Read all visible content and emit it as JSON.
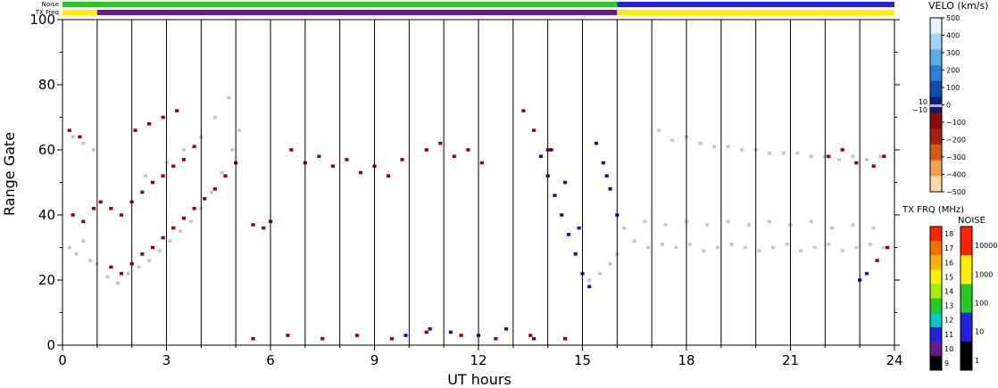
{
  "chart_data": {
    "type": "heatmap",
    "xlabel": "UT hours",
    "ylabel": "Range Gate",
    "xlim": [
      0,
      24
    ],
    "ylim": [
      0,
      100
    ],
    "x_ticks": [
      0,
      3,
      6,
      9,
      12,
      15,
      18,
      21,
      24
    ],
    "y_ticks": [
      0,
      20,
      40,
      60,
      80,
      100
    ],
    "hour_gridlines": [
      1,
      2,
      3,
      4,
      5,
      6,
      7,
      8,
      9,
      10,
      11,
      12,
      13,
      14,
      15,
      16,
      17,
      18,
      19,
      20,
      21,
      22,
      23
    ],
    "strip_labels": {
      "noise": "Noise",
      "txfreq": "TX Freq"
    },
    "noise_strip": [
      {
        "from": 0,
        "to": 16,
        "color": "#22cc22"
      },
      {
        "from": 16,
        "to": 24,
        "color": "#2222dd"
      }
    ],
    "txfreq_strip": [
      {
        "from": 0,
        "to": 1.0,
        "color": "#ffee00"
      },
      {
        "from": 1.0,
        "to": 16.0,
        "color": "#6a1a8a"
      },
      {
        "from": 16.0,
        "to": 24,
        "color": "#ffee00"
      }
    ],
    "velocity_scale": {
      "title": "VELO (km/s)",
      "ticks": [
        "500",
        "400",
        "300",
        "200",
        "100",
        "0",
        "−100",
        "−200",
        "−300",
        "−400",
        "−500"
      ],
      "ground_scatter_labels": [
        "10",
        "−10"
      ],
      "colors": [
        "#e6f4ff",
        "#9fd4f5",
        "#5aaee8",
        "#2a7fd8",
        "#0d4bb0",
        "#0a1f80",
        "#8b0a0a",
        "#a82010",
        "#d95a10",
        "#f0a050",
        "#ffd8a8"
      ]
    },
    "txfreq_scale": {
      "title": "TX FRQ (MHz)",
      "ticks": [
        "18",
        "17",
        "16",
        "15",
        "14",
        "13",
        "12",
        "11",
        "10",
        "9"
      ],
      "colors": [
        "#ff2000",
        "#ff7000",
        "#ffb000",
        "#ffee00",
        "#a0ee00",
        "#22cc22",
        "#00c8c8",
        "#2222dd",
        "#6a1a8a",
        "#000000"
      ]
    },
    "noise_scale": {
      "title": "NOISE",
      "ticks": [
        "10000",
        "1000",
        "100",
        "10",
        "1"
      ],
      "colors": [
        "#ff2000",
        "#ffee00",
        "#22cc22",
        "#2222dd",
        "#000000"
      ]
    },
    "series": [
      {
        "kind": "ground-scatter",
        "color": "#c8c8c8",
        "points": [
          [
            0.2,
            30
          ],
          [
            0.4,
            28
          ],
          [
            0.6,
            32
          ],
          [
            0.8,
            26
          ],
          [
            1.0,
            25
          ],
          [
            0.3,
            64
          ],
          [
            0.6,
            62
          ],
          [
            0.9,
            60
          ],
          [
            1.3,
            21
          ],
          [
            1.6,
            19
          ],
          [
            1.9,
            22
          ],
          [
            2.2,
            24
          ],
          [
            2.5,
            26
          ],
          [
            2.8,
            29
          ],
          [
            3.1,
            32
          ],
          [
            3.4,
            35
          ],
          [
            3.7,
            38
          ],
          [
            4.0,
            42
          ],
          [
            4.3,
            47
          ],
          [
            4.6,
            53
          ],
          [
            4.9,
            60
          ],
          [
            5.1,
            66
          ],
          [
            2.4,
            52
          ],
          [
            3.0,
            56
          ],
          [
            3.5,
            60
          ],
          [
            4.0,
            64
          ],
          [
            4.4,
            70
          ],
          [
            4.8,
            76
          ],
          [
            16.2,
            36
          ],
          [
            16.5,
            32
          ],
          [
            16.9,
            30
          ],
          [
            17.3,
            31
          ],
          [
            17.7,
            30
          ],
          [
            18.1,
            31
          ],
          [
            18.5,
            29
          ],
          [
            18.9,
            30
          ],
          [
            19.3,
            31
          ],
          [
            19.7,
            30
          ],
          [
            20.1,
            29
          ],
          [
            20.5,
            30
          ],
          [
            20.9,
            31
          ],
          [
            21.3,
            29
          ],
          [
            21.7,
            30
          ],
          [
            22.1,
            31
          ],
          [
            22.5,
            29
          ],
          [
            22.9,
            30
          ],
          [
            23.3,
            31
          ],
          [
            23.7,
            30
          ],
          [
            16.8,
            38
          ],
          [
            17.4,
            37
          ],
          [
            18.0,
            38
          ],
          [
            18.6,
            37
          ],
          [
            19.2,
            38
          ],
          [
            19.8,
            37
          ],
          [
            20.4,
            38
          ],
          [
            21.0,
            37
          ],
          [
            21.6,
            38
          ],
          [
            22.2,
            36
          ],
          [
            22.8,
            37
          ],
          [
            23.4,
            36
          ],
          [
            17.2,
            66
          ],
          [
            17.6,
            63
          ],
          [
            18.0,
            64
          ],
          [
            18.4,
            62
          ],
          [
            18.8,
            61
          ],
          [
            19.2,
            61
          ],
          [
            19.6,
            60
          ],
          [
            20.0,
            60
          ],
          [
            20.4,
            59
          ],
          [
            20.8,
            59
          ],
          [
            21.2,
            59
          ],
          [
            21.6,
            58
          ],
          [
            22.0,
            58
          ],
          [
            22.4,
            57
          ],
          [
            22.8,
            58
          ],
          [
            23.2,
            57
          ],
          [
            23.6,
            58
          ],
          [
            15.2,
            20
          ],
          [
            15.5,
            22
          ],
          [
            15.8,
            25
          ],
          [
            16.0,
            28
          ]
        ]
      },
      {
        "kind": "negative-velocity",
        "color": "#8b0a0a",
        "points": [
          [
            0.3,
            40
          ],
          [
            0.6,
            38
          ],
          [
            0.9,
            42
          ],
          [
            0.2,
            66
          ],
          [
            0.5,
            64
          ],
          [
            1.1,
            44
          ],
          [
            1.4,
            42
          ],
          [
            1.7,
            40
          ],
          [
            2.0,
            44
          ],
          [
            2.3,
            47
          ],
          [
            2.6,
            50
          ],
          [
            2.9,
            52
          ],
          [
            3.2,
            55
          ],
          [
            3.5,
            57
          ],
          [
            3.8,
            61
          ],
          [
            2.1,
            66
          ],
          [
            2.5,
            68
          ],
          [
            2.9,
            70
          ],
          [
            3.3,
            72
          ],
          [
            1.4,
            24
          ],
          [
            1.7,
            22
          ],
          [
            2.0,
            25
          ],
          [
            2.3,
            28
          ],
          [
            2.6,
            30
          ],
          [
            2.9,
            33
          ],
          [
            3.2,
            36
          ],
          [
            3.5,
            39
          ],
          [
            3.8,
            42
          ],
          [
            4.1,
            45
          ],
          [
            4.4,
            48
          ],
          [
            4.7,
            52
          ],
          [
            5.0,
            56
          ],
          [
            5.5,
            37
          ],
          [
            5.8,
            36
          ],
          [
            6.0,
            38
          ],
          [
            6.6,
            60
          ],
          [
            7.0,
            56
          ],
          [
            7.4,
            58
          ],
          [
            7.8,
            55
          ],
          [
            8.2,
            57
          ],
          [
            8.6,
            53
          ],
          [
            9.0,
            55
          ],
          [
            9.4,
            52
          ],
          [
            9.8,
            57
          ],
          [
            10.5,
            60
          ],
          [
            10.9,
            62
          ],
          [
            11.3,
            58
          ],
          [
            11.7,
            60
          ],
          [
            12.1,
            56
          ],
          [
            5.5,
            2
          ],
          [
            6.5,
            3
          ],
          [
            7.5,
            2
          ],
          [
            8.5,
            3
          ],
          [
            9.5,
            2
          ],
          [
            10.5,
            4
          ],
          [
            11.5,
            3
          ],
          [
            12.5,
            2
          ],
          [
            13.5,
            3
          ],
          [
            14.5,
            2
          ],
          [
            13.3,
            72
          ],
          [
            13.6,
            66
          ],
          [
            14.0,
            60
          ],
          [
            22.1,
            58
          ],
          [
            22.5,
            60
          ],
          [
            22.9,
            56
          ],
          [
            23.4,
            55
          ],
          [
            23.7,
            58
          ],
          [
            23.8,
            30
          ],
          [
            23.5,
            26
          ]
        ]
      },
      {
        "kind": "positive-velocity",
        "color": "#0a1f80",
        "points": [
          [
            13.8,
            58
          ],
          [
            14.0,
            52
          ],
          [
            14.2,
            46
          ],
          [
            14.4,
            40
          ],
          [
            14.6,
            34
          ],
          [
            14.8,
            28
          ],
          [
            15.0,
            22
          ],
          [
            15.2,
            18
          ],
          [
            14.1,
            60
          ],
          [
            14.5,
            50
          ],
          [
            14.9,
            36
          ],
          [
            15.6,
            56
          ],
          [
            15.8,
            48
          ],
          [
            16.0,
            40
          ],
          [
            15.4,
            62
          ],
          [
            15.7,
            52
          ],
          [
            11.2,
            4
          ],
          [
            12.0,
            3
          ],
          [
            12.8,
            5
          ],
          [
            13.6,
            2
          ],
          [
            10.6,
            5
          ],
          [
            9.9,
            3
          ],
          [
            23.0,
            20
          ],
          [
            23.2,
            22
          ]
        ]
      }
    ]
  }
}
